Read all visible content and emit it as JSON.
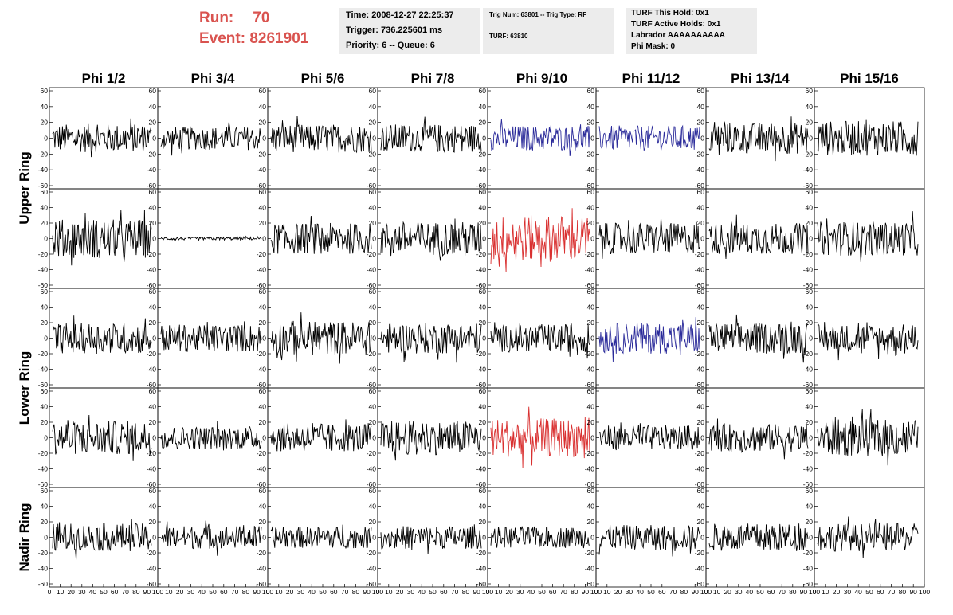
{
  "header": {
    "run_label": "Run:",
    "run_value": "70",
    "event_label": "Event:",
    "event_value": "8261901",
    "time_line": "Time: 2008-12-27 22:25:37",
    "trigger_line": "Trigger: 736.225601 ms",
    "priority_line": "Priority: 6 -- Queue: 6",
    "trig_line": "Trig Num: 63801 -- Trig Type: RF",
    "turf_line": "TURF: 63810",
    "turf_hold": "TURF This Hold: 0x1",
    "turf_active": "TURF Active Holds: 0x1",
    "labrador": "Labrador AAAAAAAAAA",
    "phi_mask": "Phi Mask: 0"
  },
  "chart_data": {
    "type": "line",
    "title": "",
    "columns": [
      "Phi 1/2",
      "Phi 3/4",
      "Phi 5/6",
      "Phi 7/8",
      "Phi 9/10",
      "Phi 11/12",
      "Phi 13/14",
      "Phi 15/16"
    ],
    "rows": [
      "Upper Ring",
      "Lower Ring",
      "Nadir Ring"
    ],
    "ylim": [
      -60,
      60
    ],
    "xlim": [
      0,
      100
    ],
    "y_ticks": [
      "60",
      "40",
      "20",
      "0",
      "-20",
      "-40",
      "-60"
    ],
    "x_ticks": [
      "0",
      "10",
      "20",
      "30",
      "40",
      "50",
      "60",
      "70",
      "80",
      "90",
      "100"
    ],
    "colors": {
      "normal": "#000000",
      "blue": "#2b2b9a",
      "red": "#d93030"
    },
    "panels": [
      [
        {
          "color": "normal",
          "amplitude": 18
        },
        {
          "color": "normal",
          "amplitude": 15
        },
        {
          "color": "normal",
          "amplitude": 18
        },
        {
          "color": "normal",
          "amplitude": 18
        },
        {
          "color": "blue",
          "amplitude": 16
        },
        {
          "color": "blue",
          "amplitude": 16
        },
        {
          "color": "normal",
          "amplitude": 20
        },
        {
          "color": "normal",
          "amplitude": 22
        }
      ],
      [
        {
          "color": "normal",
          "amplitude": 25
        },
        {
          "color": "normal",
          "amplitude": 2
        },
        {
          "color": "normal",
          "amplitude": 20
        },
        {
          "color": "normal",
          "amplitude": 22
        },
        {
          "color": "red",
          "amplitude": 30
        },
        {
          "color": "normal",
          "amplitude": 20
        },
        {
          "color": "normal",
          "amplitude": 20
        },
        {
          "color": "normal",
          "amplitude": 22
        }
      ],
      [
        {
          "color": "normal",
          "amplitude": 20
        },
        {
          "color": "normal",
          "amplitude": 18
        },
        {
          "color": "normal",
          "amplitude": 22
        },
        {
          "color": "normal",
          "amplitude": 20
        },
        {
          "color": "normal",
          "amplitude": 18
        },
        {
          "color": "blue",
          "amplitude": 20
        },
        {
          "color": "normal",
          "amplitude": 20
        },
        {
          "color": "normal",
          "amplitude": 18
        }
      ],
      [
        {
          "color": "normal",
          "amplitude": 22
        },
        {
          "color": "normal",
          "amplitude": 15
        },
        {
          "color": "normal",
          "amplitude": 18
        },
        {
          "color": "normal",
          "amplitude": 22
        },
        {
          "color": "red",
          "amplitude": 25
        },
        {
          "color": "normal",
          "amplitude": 16
        },
        {
          "color": "normal",
          "amplitude": 18
        },
        {
          "color": "normal",
          "amplitude": 24
        }
      ],
      [
        {
          "color": "normal",
          "amplitude": 18
        },
        {
          "color": "normal",
          "amplitude": 15
        },
        {
          "color": "normal",
          "amplitude": 14
        },
        {
          "color": "normal",
          "amplitude": 15
        },
        {
          "color": "normal",
          "amplitude": 14
        },
        {
          "color": "normal",
          "amplitude": 16
        },
        {
          "color": "normal",
          "amplitude": 18
        },
        {
          "color": "normal",
          "amplitude": 18
        }
      ]
    ]
  }
}
